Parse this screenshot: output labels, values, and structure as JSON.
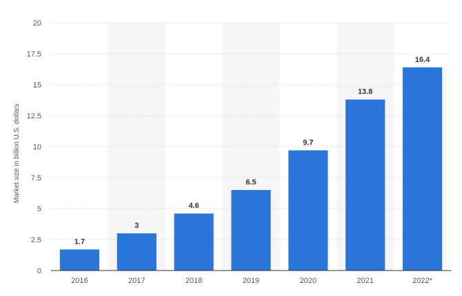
{
  "chart_data": {
    "type": "bar",
    "categories": [
      "2016",
      "2017",
      "2018",
      "2019",
      "2020",
      "2021",
      "2022*"
    ],
    "values": [
      1.7,
      3,
      4.6,
      6.5,
      9.7,
      13.8,
      16.4
    ],
    "data_labels": [
      "1.7",
      "3",
      "4.6",
      "6.5",
      "9.7",
      "13.8",
      "16.4"
    ],
    "title": "",
    "xlabel": "",
    "ylabel": "Market size in billion U.S. dollars",
    "ylim": [
      0,
      20
    ],
    "yticks": [
      0,
      2.5,
      5,
      7.5,
      10,
      12.5,
      15,
      17.5,
      20
    ],
    "ytick_labels": [
      "0",
      "2.5",
      "5",
      "7.5",
      "10",
      "12.5",
      "15",
      "17.5",
      "20"
    ],
    "grid": "horizontal dashed",
    "legend": "none",
    "colors": {
      "bar": "#2a75d9",
      "alternate_band": "#f6f6f6",
      "grid": "#dddddd",
      "axis": "#333333"
    }
  }
}
